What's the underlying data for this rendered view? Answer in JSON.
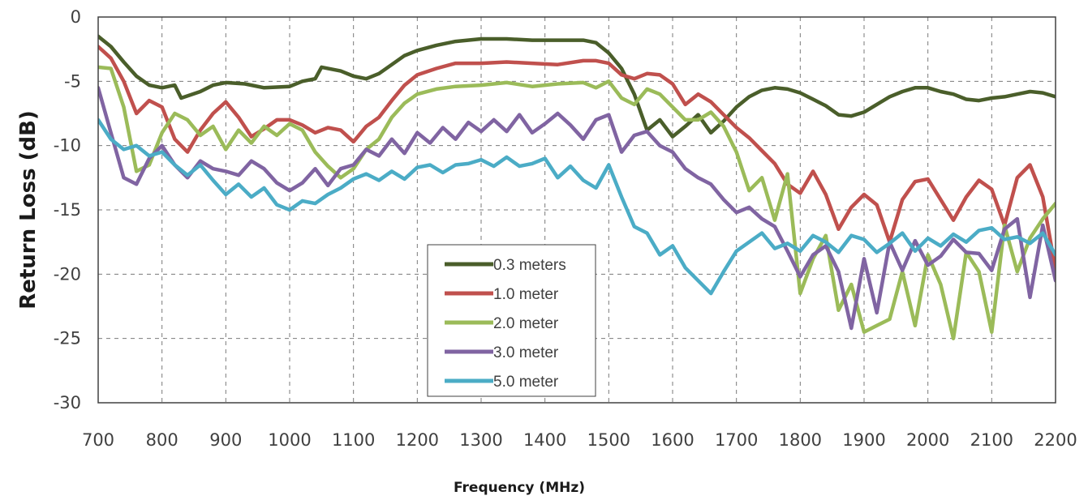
{
  "chart_data": {
    "type": "line",
    "title": "",
    "xlabel": "Frequency (MHz)",
    "ylabel": "Return Loss (dB)",
    "xlim": [
      700,
      2200
    ],
    "ylim": [
      -30,
      0
    ],
    "x_ticks": [
      700,
      800,
      900,
      1000,
      1100,
      1200,
      1300,
      1400,
      1500,
      1600,
      1700,
      1800,
      1900,
      2000,
      2100,
      2200
    ],
    "y_ticks": [
      0,
      -5,
      -10,
      -15,
      -20,
      -25,
      -30
    ],
    "grid": true,
    "legend_position": "bottom-center",
    "series": [
      {
        "name": "0.3 meters",
        "color": "#4a5e2a",
        "x": [
          700,
          720,
          740,
          760,
          780,
          800,
          820,
          830,
          860,
          880,
          900,
          930,
          960,
          1000,
          1020,
          1040,
          1050,
          1080,
          1100,
          1120,
          1140,
          1160,
          1180,
          1200,
          1230,
          1260,
          1300,
          1340,
          1380,
          1420,
          1460,
          1480,
          1500,
          1520,
          1540,
          1560,
          1580,
          1600,
          1620,
          1640,
          1660,
          1680,
          1700,
          1720,
          1740,
          1760,
          1780,
          1800,
          1820,
          1840,
          1860,
          1880,
          1900,
          1920,
          1940,
          1960,
          1980,
          2000,
          2020,
          2040,
          2060,
          2080,
          2100,
          2120,
          2140,
          2160,
          2180,
          2200
        ],
        "y": [
          -1.5,
          -2.3,
          -3.5,
          -4.6,
          -5.3,
          -5.5,
          -5.3,
          -6.3,
          -5.8,
          -5.3,
          -5.1,
          -5.2,
          -5.5,
          -5.4,
          -5.0,
          -4.8,
          -3.9,
          -4.2,
          -4.6,
          -4.8,
          -4.4,
          -3.7,
          -3.0,
          -2.6,
          -2.2,
          -1.9,
          -1.7,
          -1.7,
          -1.8,
          -1.8,
          -1.8,
          -2.0,
          -2.8,
          -4.0,
          -6.0,
          -8.8,
          -8.0,
          -9.3,
          -8.5,
          -7.6,
          -9.0,
          -8.1,
          -7.0,
          -6.2,
          -5.7,
          -5.5,
          -5.6,
          -5.9,
          -6.4,
          -6.9,
          -7.6,
          -7.7,
          -7.4,
          -6.8,
          -6.2,
          -5.8,
          -5.5,
          -5.5,
          -5.8,
          -6.0,
          -6.4,
          -6.5,
          -6.3,
          -6.2,
          -6.0,
          -5.8,
          -5.9,
          -6.2
        ]
      },
      {
        "name": "1.0 meter",
        "color": "#c0504d",
        "x": [
          700,
          720,
          740,
          760,
          780,
          800,
          820,
          840,
          860,
          880,
          900,
          920,
          940,
          960,
          980,
          1000,
          1020,
          1040,
          1060,
          1080,
          1100,
          1120,
          1140,
          1160,
          1180,
          1200,
          1230,
          1260,
          1300,
          1340,
          1380,
          1420,
          1460,
          1480,
          1500,
          1520,
          1540,
          1560,
          1580,
          1600,
          1620,
          1640,
          1660,
          1680,
          1700,
          1720,
          1740,
          1760,
          1780,
          1800,
          1820,
          1840,
          1860,
          1880,
          1900,
          1920,
          1940,
          1960,
          1980,
          2000,
          2020,
          2040,
          2060,
          2080,
          2100,
          2120,
          2140,
          2160,
          2180,
          2200
        ],
        "y": [
          -2.3,
          -3.2,
          -5.0,
          -7.5,
          -6.5,
          -7.0,
          -9.5,
          -10.5,
          -8.8,
          -7.5,
          -6.6,
          -7.8,
          -9.3,
          -8.7,
          -8.0,
          -8.0,
          -8.4,
          -9.0,
          -8.6,
          -8.8,
          -9.7,
          -8.5,
          -7.8,
          -6.5,
          -5.3,
          -4.5,
          -4.0,
          -3.6,
          -3.6,
          -3.5,
          -3.6,
          -3.7,
          -3.4,
          -3.4,
          -3.6,
          -4.5,
          -4.8,
          -4.4,
          -4.5,
          -5.2,
          -6.8,
          -6.0,
          -6.6,
          -7.6,
          -8.6,
          -9.4,
          -10.4,
          -11.4,
          -13.0,
          -13.7,
          -12.0,
          -13.8,
          -16.5,
          -14.8,
          -13.8,
          -14.6,
          -17.5,
          -14.2,
          -12.8,
          -12.6,
          -14.2,
          -15.8,
          -14.0,
          -12.7,
          -13.4,
          -16.2,
          -12.5,
          -11.5,
          -14.0,
          -19.7
        ]
      },
      {
        "name": "2.0 meter",
        "color": "#9bbb59",
        "x": [
          700,
          720,
          740,
          760,
          780,
          800,
          820,
          840,
          860,
          880,
          900,
          920,
          940,
          960,
          980,
          1000,
          1020,
          1040,
          1060,
          1080,
          1100,
          1120,
          1140,
          1160,
          1180,
          1200,
          1230,
          1260,
          1300,
          1340,
          1380,
          1420,
          1460,
          1480,
          1500,
          1520,
          1540,
          1560,
          1580,
          1600,
          1620,
          1640,
          1660,
          1680,
          1700,
          1720,
          1740,
          1760,
          1780,
          1800,
          1820,
          1840,
          1860,
          1880,
          1900,
          1920,
          1940,
          1960,
          1980,
          2000,
          2020,
          2040,
          2060,
          2080,
          2100,
          2120,
          2140,
          2160,
          2180,
          2200
        ],
        "y": [
          -3.9,
          -4.0,
          -7.0,
          -12.0,
          -11.5,
          -9.0,
          -7.5,
          -8.0,
          -9.2,
          -8.5,
          -10.3,
          -8.8,
          -9.8,
          -8.5,
          -9.2,
          -8.3,
          -8.8,
          -10.5,
          -11.6,
          -12.5,
          -11.8,
          -10.3,
          -9.5,
          -7.8,
          -6.7,
          -6.0,
          -5.6,
          -5.4,
          -5.3,
          -5.1,
          -5.4,
          -5.2,
          -5.1,
          -5.5,
          -5.0,
          -6.3,
          -6.8,
          -5.6,
          -6.0,
          -7.0,
          -8.0,
          -8.0,
          -7.4,
          -8.5,
          -10.5,
          -13.5,
          -12.5,
          -15.8,
          -12.2,
          -21.5,
          -18.8,
          -17.0,
          -22.8,
          -20.8,
          -24.5,
          -24.0,
          -23.5,
          -19.8,
          -24.0,
          -18.5,
          -20.8,
          -25.0,
          -18.3,
          -19.8,
          -24.5,
          -16.2,
          -19.8,
          -17.2,
          -15.7,
          -14.5
        ]
      },
      {
        "name": "3.0 meter",
        "color": "#8064a2",
        "x": [
          700,
          720,
          740,
          760,
          780,
          800,
          820,
          840,
          860,
          880,
          900,
          920,
          940,
          960,
          980,
          1000,
          1020,
          1040,
          1060,
          1080,
          1100,
          1120,
          1140,
          1160,
          1180,
          1200,
          1220,
          1240,
          1260,
          1280,
          1300,
          1320,
          1340,
          1360,
          1380,
          1400,
          1420,
          1440,
          1460,
          1480,
          1500,
          1520,
          1540,
          1560,
          1580,
          1600,
          1620,
          1640,
          1660,
          1680,
          1700,
          1720,
          1740,
          1760,
          1780,
          1800,
          1820,
          1840,
          1860,
          1880,
          1900,
          1920,
          1940,
          1960,
          1980,
          2000,
          2020,
          2040,
          2060,
          2080,
          2100,
          2120,
          2140,
          2160,
          2180,
          2200
        ],
        "y": [
          -5.5,
          -9.0,
          -12.5,
          -13.0,
          -11.0,
          -10.0,
          -11.5,
          -12.5,
          -11.2,
          -11.8,
          -12.0,
          -12.3,
          -11.2,
          -11.8,
          -12.9,
          -13.5,
          -12.9,
          -11.8,
          -13.1,
          -11.8,
          -11.5,
          -10.3,
          -10.8,
          -9.5,
          -10.6,
          -9.0,
          -9.8,
          -8.6,
          -9.5,
          -8.2,
          -8.9,
          -8.0,
          -8.9,
          -7.6,
          -9.0,
          -8.3,
          -7.5,
          -8.4,
          -9.5,
          -8.0,
          -7.6,
          -10.5,
          -9.2,
          -8.9,
          -10.0,
          -10.5,
          -11.8,
          -12.5,
          -13.0,
          -14.2,
          -15.2,
          -14.8,
          -15.7,
          -16.3,
          -18.2,
          -20.2,
          -18.5,
          -17.8,
          -19.8,
          -24.2,
          -18.8,
          -23.0,
          -17.5,
          -19.7,
          -17.4,
          -19.3,
          -18.6,
          -17.3,
          -18.3,
          -18.4,
          -19.7,
          -16.5,
          -15.7,
          -21.8,
          -16.2,
          -20.5
        ]
      },
      {
        "name": "5.0 meter",
        "color": "#4bacc6",
        "x": [
          700,
          720,
          740,
          760,
          780,
          800,
          820,
          840,
          860,
          880,
          900,
          920,
          940,
          960,
          980,
          1000,
          1020,
          1040,
          1060,
          1080,
          1100,
          1120,
          1140,
          1160,
          1180,
          1200,
          1220,
          1240,
          1260,
          1280,
          1300,
          1320,
          1340,
          1360,
          1380,
          1400,
          1420,
          1440,
          1460,
          1480,
          1500,
          1520,
          1540,
          1560,
          1580,
          1600,
          1620,
          1640,
          1660,
          1680,
          1700,
          1720,
          1740,
          1760,
          1780,
          1800,
          1820,
          1840,
          1860,
          1880,
          1900,
          1920,
          1940,
          1960,
          1980,
          2000,
          2020,
          2040,
          2060,
          2080,
          2100,
          2120,
          2140,
          2160,
          2180,
          2200
        ],
        "y": [
          -8.0,
          -9.5,
          -10.3,
          -10.0,
          -10.8,
          -10.5,
          -11.5,
          -12.3,
          -11.5,
          -12.7,
          -13.8,
          -13.0,
          -14.0,
          -13.3,
          -14.6,
          -15.0,
          -14.3,
          -14.5,
          -13.8,
          -13.3,
          -12.6,
          -12.2,
          -12.7,
          -12.0,
          -12.6,
          -11.7,
          -11.5,
          -12.1,
          -11.5,
          -11.4,
          -11.1,
          -11.6,
          -10.9,
          -11.6,
          -11.4,
          -11.0,
          -12.5,
          -11.6,
          -12.7,
          -13.3,
          -11.5,
          -14.0,
          -16.3,
          -16.8,
          -18.5,
          -17.8,
          -19.5,
          -20.5,
          -21.5,
          -19.8,
          -18.2,
          -17.5,
          -16.8,
          -18.0,
          -17.6,
          -18.2,
          -17.0,
          -17.5,
          -18.3,
          -17.0,
          -17.3,
          -18.3,
          -17.6,
          -16.8,
          -18.2,
          -17.2,
          -17.8,
          -16.9,
          -17.5,
          -16.6,
          -16.4,
          -17.3,
          -17.1,
          -17.6,
          -16.8,
          -18.5
        ]
      }
    ]
  }
}
